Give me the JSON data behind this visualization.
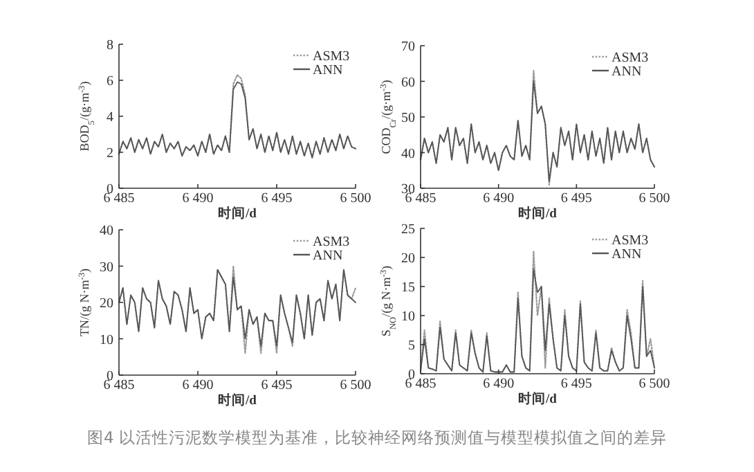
{
  "chart_data": [
    {
      "type": "line",
      "xlabel": "时间/d",
      "ylabel": "BOD$_{5}$/(g·m$^{-3}$)",
      "legend": "top right",
      "xlim": [
        6485,
        6500
      ],
      "ylim": [
        0,
        8
      ],
      "xticks": [
        {
          "value": 6485,
          "label": "6 485"
        },
        {
          "value": 6490,
          "label": "6 490"
        },
        {
          "value": 6495,
          "label": "6 495"
        },
        {
          "value": 6500,
          "label": "6 500"
        }
      ],
      "yticks": [
        0,
        2,
        4,
        6,
        8
      ],
      "x": [
        6485,
        6485.25,
        6485.5,
        6485.75,
        6486,
        6486.25,
        6486.5,
        6486.75,
        6487,
        6487.25,
        6487.5,
        6487.75,
        6488,
        6488.25,
        6488.5,
        6488.75,
        6489,
        6489.25,
        6489.5,
        6489.75,
        6490,
        6490.25,
        6490.5,
        6490.75,
        6491,
        6491.25,
        6491.5,
        6491.75,
        6492,
        6492.25,
        6492.5,
        6492.75,
        6493,
        6493.25,
        6493.5,
        6493.75,
        6494,
        6494.25,
        6494.5,
        6494.75,
        6495,
        6495.25,
        6495.5,
        6495.75,
        6496,
        6496.25,
        6496.5,
        6496.75,
        6497,
        6497.25,
        6497.5,
        6497.75,
        6498,
        6498.25,
        6498.5,
        6498.75,
        6499,
        6499.25,
        6499.5,
        6499.75,
        6500
      ],
      "series": [
        {
          "name": "ASM3",
          "color": "#9a9a9a",
          "line_style": "dotted",
          "values": [
            1.9,
            2.6,
            2.2,
            2.8,
            2.0,
            2.7,
            2.2,
            2.8,
            1.9,
            2.6,
            2.3,
            3.0,
            2.0,
            2.5,
            2.2,
            2.6,
            1.8,
            2.3,
            2.1,
            2.4,
            1.8,
            2.6,
            2.0,
            3.0,
            1.9,
            2.4,
            2.1,
            2.9,
            2.0,
            5.8,
            6.3,
            6.1,
            5.2,
            2.7,
            3.3,
            2.2,
            3.0,
            2.0,
            2.9,
            2.1,
            3.1,
            2.0,
            2.7,
            1.9,
            2.9,
            1.9,
            2.6,
            1.8,
            2.5,
            1.7,
            2.6,
            1.9,
            2.8,
            2.0,
            2.7,
            2.1,
            3.0,
            2.2,
            2.9,
            2.3,
            2.2
          ]
        },
        {
          "name": "ANN",
          "color": "#555555",
          "line_style": "solid",
          "values": [
            1.9,
            2.6,
            2.2,
            2.8,
            2.0,
            2.7,
            2.2,
            2.8,
            1.9,
            2.6,
            2.3,
            3.0,
            2.0,
            2.5,
            2.2,
            2.6,
            1.8,
            2.3,
            2.1,
            2.4,
            1.8,
            2.6,
            2.0,
            3.0,
            1.9,
            2.4,
            2.1,
            2.9,
            2.0,
            5.5,
            5.9,
            5.8,
            5.0,
            2.7,
            3.3,
            2.2,
            3.0,
            2.0,
            2.9,
            2.1,
            3.1,
            2.0,
            2.7,
            1.9,
            2.9,
            1.9,
            2.6,
            1.8,
            2.5,
            1.7,
            2.6,
            1.9,
            2.8,
            2.0,
            2.7,
            2.1,
            3.0,
            2.2,
            2.9,
            2.3,
            2.2
          ]
        }
      ]
    },
    {
      "type": "line",
      "xlabel": "时间/d",
      "ylabel": "COD$_{Cr}$/(g·m$^{-3}$)",
      "legend": "top right",
      "xlim": [
        6485,
        6500
      ],
      "ylim": [
        30,
        70
      ],
      "xticks": [
        {
          "value": 6485,
          "label": "6 485"
        },
        {
          "value": 6490,
          "label": "6 490"
        },
        {
          "value": 6495,
          "label": "6 495"
        },
        {
          "value": 6500,
          "label": "6 500"
        }
      ],
      "yticks": [
        30,
        40,
        50,
        60,
        70
      ],
      "x": [
        6485,
        6485.25,
        6485.5,
        6485.75,
        6486,
        6486.25,
        6486.5,
        6486.75,
        6487,
        6487.25,
        6487.5,
        6487.75,
        6488,
        6488.25,
        6488.5,
        6488.75,
        6489,
        6489.25,
        6489.5,
        6489.75,
        6490,
        6490.25,
        6490.5,
        6490.75,
        6491,
        6491.25,
        6491.5,
        6491.75,
        6492,
        6492.25,
        6492.5,
        6492.75,
        6493,
        6493.25,
        6493.5,
        6493.75,
        6494,
        6494.25,
        6494.5,
        6494.75,
        6495,
        6495.25,
        6495.5,
        6495.75,
        6496,
        6496.25,
        6496.5,
        6496.75,
        6497,
        6497.25,
        6497.5,
        6497.75,
        6498,
        6498.25,
        6498.5,
        6498.75,
        6499,
        6499.25,
        6499.5,
        6499.75,
        6500
      ],
      "series": [
        {
          "name": "ASM3",
          "color": "#9a9a9a",
          "line_style": "dotted",
          "values": [
            38,
            44,
            40,
            43,
            37,
            45,
            43,
            47,
            38,
            47,
            42,
            44,
            37,
            48,
            40,
            43,
            38,
            42,
            37,
            40,
            35,
            40,
            42,
            39,
            38,
            49,
            39,
            42,
            38,
            63,
            51,
            53,
            48,
            31,
            40,
            36,
            47,
            42,
            46,
            38,
            48,
            40,
            45,
            38,
            46,
            39,
            44,
            37,
            47,
            38,
            46,
            40,
            46,
            40,
            44,
            41,
            48,
            40,
            44,
            38,
            36
          ]
        },
        {
          "name": "ANN",
          "color": "#555555",
          "line_style": "solid",
          "values": [
            38,
            44,
            40,
            43,
            37,
            45,
            43,
            47,
            38,
            47,
            42,
            44,
            37,
            48,
            40,
            43,
            38,
            42,
            37,
            40,
            35,
            40,
            42,
            39,
            38,
            49,
            39,
            42,
            38,
            60,
            51,
            53,
            48,
            32,
            40,
            36,
            47,
            42,
            46,
            38,
            48,
            40,
            45,
            38,
            46,
            39,
            44,
            37,
            47,
            38,
            46,
            40,
            46,
            40,
            44,
            41,
            48,
            40,
            44,
            38,
            36
          ]
        }
      ]
    },
    {
      "type": "line",
      "xlabel": "时间/d",
      "ylabel": "TN/(g N·m$^{-3}$)",
      "legend": "top right",
      "xlim": [
        6485,
        6500
      ],
      "ylim": [
        0,
        40
      ],
      "xticks": [
        {
          "value": 6485,
          "label": "6 485"
        },
        {
          "value": 6490,
          "label": "6 490"
        },
        {
          "value": 6495,
          "label": "6 495"
        },
        {
          "value": 6500,
          "label": "6 500"
        }
      ],
      "yticks": [
        0,
        10,
        20,
        30,
        40
      ],
      "x": [
        6485,
        6485.25,
        6485.5,
        6485.75,
        6486,
        6486.25,
        6486.5,
        6486.75,
        6487,
        6487.25,
        6487.5,
        6487.75,
        6488,
        6488.25,
        6488.5,
        6488.75,
        6489,
        6489.25,
        6489.5,
        6489.75,
        6490,
        6490.25,
        6490.5,
        6490.75,
        6491,
        6491.25,
        6491.5,
        6491.75,
        6492,
        6492.25,
        6492.5,
        6492.75,
        6493,
        6493.25,
        6493.5,
        6493.75,
        6494,
        6494.25,
        6494.5,
        6494.75,
        6495,
        6495.25,
        6495.5,
        6495.75,
        6496,
        6496.25,
        6496.5,
        6496.75,
        6497,
        6497.25,
        6497.5,
        6497.75,
        6498,
        6498.25,
        6498.5,
        6498.75,
        6499,
        6499.25,
        6499.5,
        6499.75,
        6500
      ],
      "series": [
        {
          "name": "ASM3",
          "color": "#9a9a9a",
          "line_style": "dotted",
          "values": [
            20,
            24,
            14,
            22,
            20,
            12,
            24,
            21,
            20,
            13,
            26,
            21,
            19,
            14,
            23,
            22,
            18,
            12,
            24,
            17,
            18,
            10,
            16,
            17,
            15,
            29,
            27,
            25,
            12,
            30,
            18,
            19,
            6,
            18,
            14,
            16,
            6,
            17,
            15,
            15,
            6,
            22,
            17,
            13,
            8,
            22,
            17,
            10,
            22,
            11,
            20,
            21,
            15,
            26,
            21,
            25,
            15,
            29,
            22,
            21,
            24
          ]
        },
        {
          "name": "ANN",
          "color": "#555555",
          "line_style": "solid",
          "values": [
            20,
            24,
            14,
            22,
            20,
            12,
            24,
            21,
            20,
            13,
            26,
            21,
            19,
            14,
            23,
            22,
            18,
            12,
            24,
            17,
            18,
            10,
            16,
            17,
            15,
            29,
            27,
            25,
            12,
            27,
            18,
            19,
            10,
            18,
            14,
            16,
            8,
            17,
            15,
            15,
            8,
            22,
            17,
            13,
            9,
            22,
            17,
            10,
            22,
            11,
            20,
            21,
            15,
            26,
            21,
            25,
            15,
            29,
            22,
            21,
            20
          ]
        }
      ]
    },
    {
      "type": "line",
      "xlabel": "时间/d",
      "ylabel": "S$_{NO}$/(g N·m$^{-3}$)",
      "legend": "top right",
      "xlim": [
        6485,
        6500
      ],
      "ylim": [
        0,
        25
      ],
      "xticks": [
        {
          "value": 6485,
          "label": "6 485"
        },
        {
          "value": 6490,
          "label": "6 490"
        },
        {
          "value": 6495,
          "label": "6 495"
        },
        {
          "value": 6500,
          "label": "6 500"
        }
      ],
      "yticks": [
        0,
        5,
        10,
        15,
        20,
        25
      ],
      "annotations": [
        "图4 以活性污泥数学模型为基准，比较神经网络预测值与模型模拟值之间的差异"
      ],
      "x": [
        6485,
        6485.25,
        6485.5,
        6485.75,
        6486,
        6486.25,
        6486.5,
        6486.75,
        6487,
        6487.25,
        6487.5,
        6487.75,
        6488,
        6488.25,
        6488.5,
        6488.75,
        6489,
        6489.25,
        6489.5,
        6489.75,
        6490,
        6490.25,
        6490.5,
        6490.75,
        6491,
        6491.25,
        6491.5,
        6491.75,
        6492,
        6492.25,
        6492.5,
        6492.75,
        6493,
        6493.25,
        6493.5,
        6493.75,
        6494,
        6494.25,
        6494.5,
        6494.75,
        6495,
        6495.25,
        6495.5,
        6495.75,
        6496,
        6496.25,
        6496.5,
        6496.75,
        6497,
        6497.25,
        6497.5,
        6497.75,
        6498,
        6498.25,
        6498.5,
        6498.75,
        6499,
        6499.25,
        6499.5,
        6499.75,
        6500
      ],
      "series": [
        {
          "name": "ASM3",
          "color": "#9a9a9a",
          "line_style": "dotted",
          "values": [
            0.5,
            7.5,
            1,
            0.8,
            0.5,
            9,
            2.5,
            1.5,
            0.5,
            7.5,
            1.5,
            1,
            0.5,
            7.5,
            3.5,
            1,
            0.3,
            7,
            0.5,
            0.3,
            0.3,
            0.3,
            1.5,
            0.3,
            0.3,
            14,
            3,
            1,
            0.5,
            21,
            10,
            15,
            1,
            13,
            6,
            1,
            0.5,
            11,
            3,
            1,
            0.5,
            12.5,
            2,
            1,
            0.5,
            7.5,
            1,
            0.5,
            0.5,
            4.5,
            2,
            0.5,
            1,
            11,
            7,
            1,
            1,
            16,
            3,
            6,
            1
          ]
        },
        {
          "name": "ANN",
          "color": "#555555",
          "line_style": "solid",
          "values": [
            0.5,
            6,
            1,
            0.8,
            0.5,
            8,
            2.5,
            1.5,
            0.5,
            7,
            1.5,
            1,
            0.5,
            7,
            3.5,
            1,
            0.3,
            6.5,
            0.5,
            0.3,
            0.3,
            0.3,
            1.5,
            0.3,
            0.3,
            13,
            3,
            1,
            0.5,
            18,
            14,
            15,
            4,
            12,
            6,
            1,
            0.5,
            10,
            3,
            1,
            0.5,
            12,
            2,
            1,
            0.5,
            7,
            1,
            0.5,
            0.5,
            4,
            2,
            0.5,
            1,
            10,
            6,
            1,
            1,
            15,
            3,
            4,
            1
          ]
        }
      ]
    }
  ]
}
